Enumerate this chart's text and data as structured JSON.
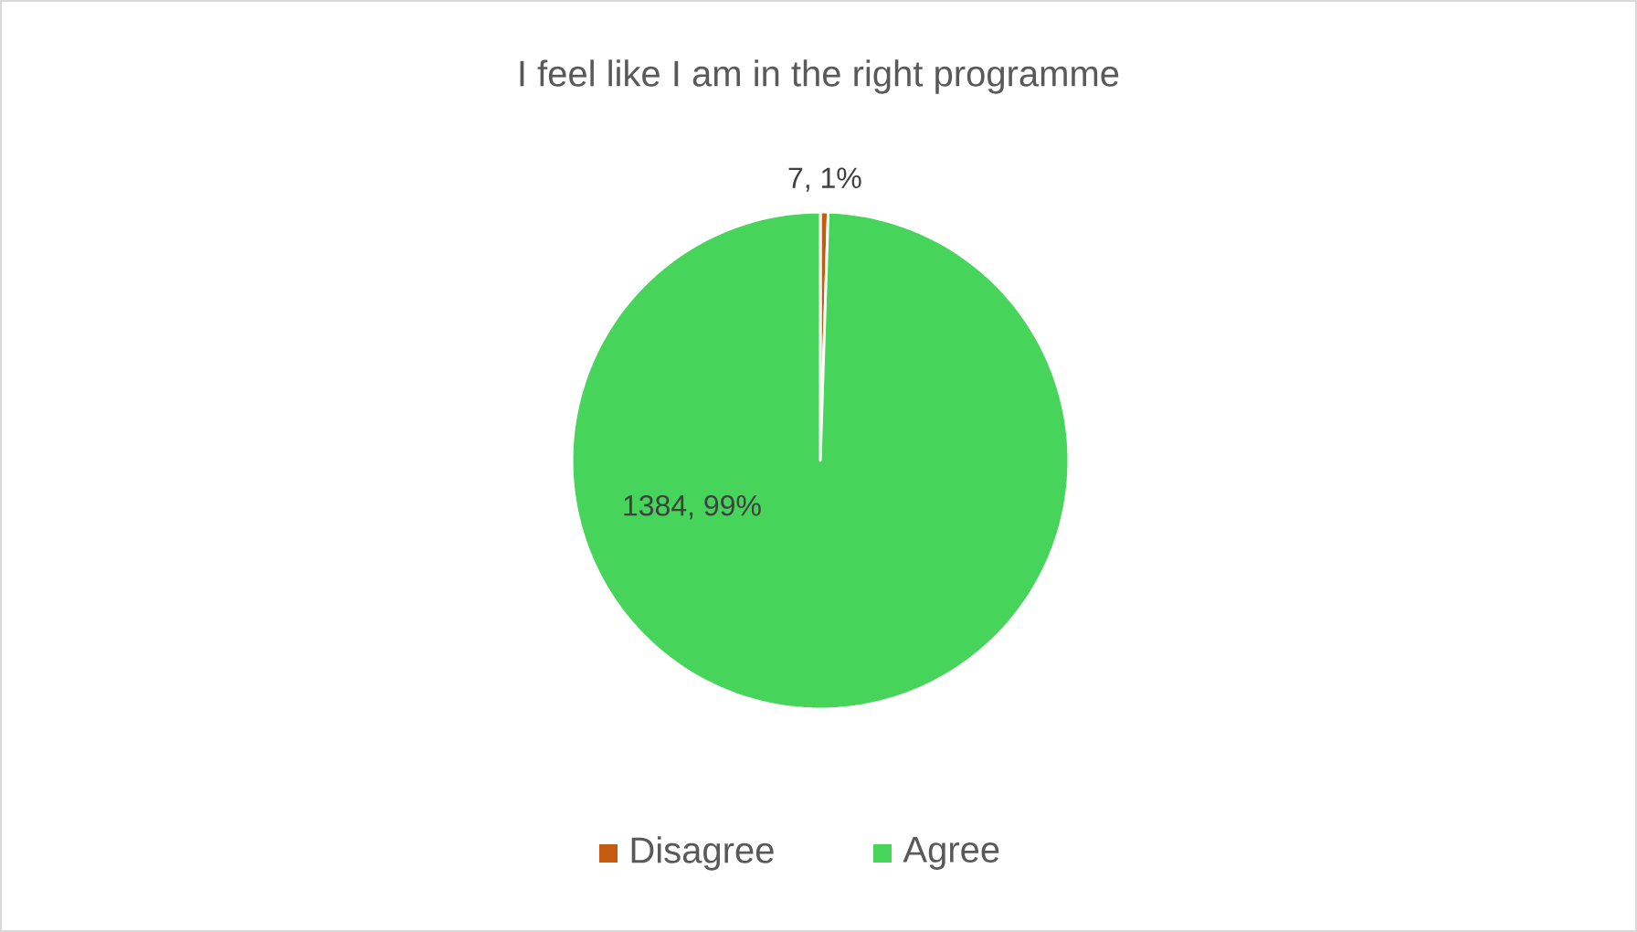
{
  "chart_data": {
    "type": "pie",
    "title": "I feel like I am in the right programme",
    "categories": [
      "Disagree",
      "Agree"
    ],
    "values": [
      7,
      1384
    ],
    "colors": [
      "#c55a11",
      "#47d45b"
    ],
    "value_labels": [
      "7, 1%",
      "1384, 99%"
    ],
    "legend": "bottom"
  }
}
